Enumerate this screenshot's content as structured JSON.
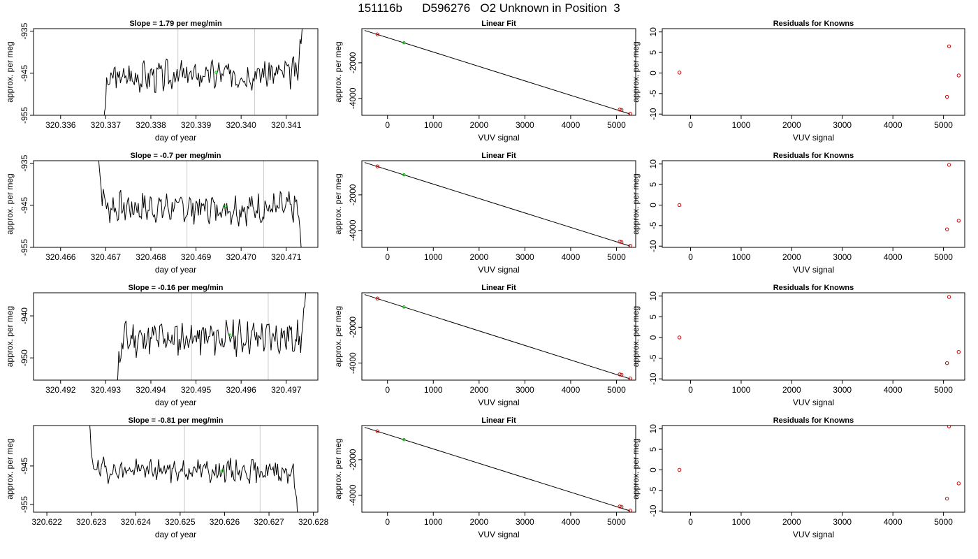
{
  "figure": {
    "title": "151116b      D596276   O2 Unknown in Position  3"
  },
  "chart_data": [
    {
      "type": "line",
      "panel": "timeseries",
      "title": "Slope =  1.79  per meg/min",
      "xlabel": "day of year",
      "ylabel": "approx. per meg",
      "xlim": [
        320.3354,
        320.3417
      ],
      "ylim": [
        -955,
        -934.4
      ],
      "xticks": [
        320.336,
        320.337,
        320.338,
        320.339,
        320.34,
        320.341
      ],
      "xtick_labels": [
        "320.336",
        "320.337",
        "320.338",
        "320.339",
        "320.340",
        "320.341"
      ],
      "yticks": [
        -955,
        -945,
        -935
      ],
      "ytick_labels": [
        "-955",
        "-945",
        "-935"
      ],
      "trace": {
        "start": 320.3369,
        "end": 320.3414,
        "base": -946,
        "slope": 1.2,
        "seed": 3,
        "noise": 1.8,
        "pre": "rise",
        "post": "spike"
      },
      "vlines": [
        320.3386,
        320.3403
      ],
      "marker": {
        "x": 320.33945,
        "y": -944.8,
        "color": "#00cc00"
      }
    },
    {
      "type": "scatter",
      "panel": "fit",
      "title": "Linear Fit",
      "xlabel": "VUV signal",
      "ylabel": "approx. per meg",
      "xlim": [
        -560,
        5420
      ],
      "ylim": [
        -4950,
        -80
      ],
      "xticks": [
        0,
        1000,
        2000,
        3000,
        4000,
        5000
      ],
      "xtick_labels": [
        "0",
        "1000",
        "2000",
        "3000",
        "4000",
        "5000"
      ],
      "yticks": [
        -4000,
        -2000
      ],
      "ytick_labels": [
        "-4000",
        "-2000"
      ],
      "line": [
        [
          -500,
          -180
        ],
        [
          5300,
          -4880
        ]
      ],
      "knowns": [
        {
          "x": -220,
          "y": -400
        },
        {
          "x": 5070,
          "y": -4630
        },
        {
          "x": 5110,
          "y": -4650
        },
        {
          "x": 5300,
          "y": -4860
        }
      ],
      "unknown": {
        "x": 360,
        "y": -870
      }
    },
    {
      "type": "scatter",
      "panel": "residuals",
      "title": "Residuals for Knowns",
      "xlabel": "VUV signal",
      "ylabel": "",
      "xlim": [
        -560,
        5420
      ],
      "ylim": [
        -10.3,
        10.8
      ],
      "xticks": [
        0,
        1000,
        2000,
        3000,
        4000,
        5000
      ],
      "xtick_labels": [
        "0",
        "1000",
        "2000",
        "3000",
        "4000",
        "5000"
      ],
      "yticks": [
        -10,
        -5,
        0,
        5,
        10
      ],
      "ytick_labels": [
        "-10",
        "-5",
        "0",
        "5",
        "10"
      ],
      "points": [
        {
          "x": -220,
          "y": 0.1
        },
        {
          "x": 5070,
          "y": -5.8
        },
        {
          "x": 5110,
          "y": 6.5
        },
        {
          "x": 5300,
          "y": -0.6
        }
      ]
    },
    {
      "type": "line",
      "panel": "timeseries",
      "title": "Slope =  -0.7  per meg/min",
      "xlabel": "day of year",
      "ylabel": "approx. per meg",
      "xlim": [
        320.4654,
        320.4717
      ],
      "ylim": [
        -955,
        -934.4
      ],
      "xticks": [
        320.466,
        320.467,
        320.468,
        320.469,
        320.47,
        320.471
      ],
      "xtick_labels": [
        "320.466",
        "320.467",
        "320.468",
        "320.469",
        "320.470",
        "320.471"
      ],
      "yticks": [
        -955,
        -945,
        -935
      ],
      "ytick_labels": [
        "-955",
        "-945",
        "-935"
      ],
      "trace": {
        "start": 320.4668,
        "end": 320.4714,
        "base": -945.5,
        "slope": -0.3,
        "seed": 7,
        "noise": 1.8,
        "pre": "fall",
        "post": "drop"
      },
      "vlines": [
        320.4688,
        320.4705
      ],
      "marker": {
        "x": 320.46965,
        "y": -945.2,
        "color": "#00cc00"
      }
    },
    {
      "type": "scatter",
      "panel": "fit",
      "title": "Linear Fit",
      "xlabel": "VUV signal",
      "ylabel": "approx. per meg",
      "xlim": [
        -560,
        5420
      ],
      "ylim": [
        -4950,
        -80
      ],
      "xticks": [
        0,
        1000,
        2000,
        3000,
        4000,
        5000
      ],
      "xtick_labels": [
        "0",
        "1000",
        "2000",
        "3000",
        "4000",
        "5000"
      ],
      "yticks": [
        -4000,
        -2000
      ],
      "ytick_labels": [
        "-4000",
        "-2000"
      ],
      "line": [
        [
          -500,
          -180
        ],
        [
          5300,
          -4880
        ]
      ],
      "knowns": [
        {
          "x": -220,
          "y": -400
        },
        {
          "x": 5070,
          "y": -4630
        },
        {
          "x": 5110,
          "y": -4650
        },
        {
          "x": 5300,
          "y": -4860
        }
      ],
      "unknown": {
        "x": 360,
        "y": -870
      }
    },
    {
      "type": "scatter",
      "panel": "residuals",
      "title": "Residuals for Knowns",
      "xlabel": "VUV signal",
      "ylabel": "",
      "xlim": [
        -560,
        5420
      ],
      "ylim": [
        -10.3,
        10.8
      ],
      "xticks": [
        0,
        1000,
        2000,
        3000,
        4000,
        5000
      ],
      "xtick_labels": [
        "0",
        "1000",
        "2000",
        "3000",
        "4000",
        "5000"
      ],
      "yticks": [
        -10,
        -5,
        0,
        5,
        10
      ],
      "ytick_labels": [
        "-10",
        "-5",
        "0",
        "5",
        "10"
      ],
      "points": [
        {
          "x": -220,
          "y": 0.0
        },
        {
          "x": 5070,
          "y": -5.9
        },
        {
          "x": 5110,
          "y": 9.8
        },
        {
          "x": 5300,
          "y": -3.8
        }
      ]
    },
    {
      "type": "line",
      "panel": "timeseries",
      "title": "Slope =  -0.16  per meg/min",
      "xlabel": "day of year",
      "ylabel": "approx. per meg",
      "xlim": [
        320.4914,
        320.4977
      ],
      "ylim": [
        -955.3,
        -934.5
      ],
      "xticks": [
        320.492,
        320.493,
        320.494,
        320.495,
        320.496,
        320.497
      ],
      "xtick_labels": [
        "320.492",
        "320.493",
        "320.494",
        "320.495",
        "320.496",
        "320.497"
      ],
      "yticks": [
        -950,
        -940
      ],
      "ytick_labels": [
        "-950",
        "-940"
      ],
      "trace": {
        "start": 320.4932,
        "end": 320.4975,
        "base": -945.5,
        "slope": 0.6,
        "seed": 11,
        "noise": 2.0,
        "pre": "rise",
        "post": "spike"
      },
      "vlines": [
        320.4949,
        320.4966
      ],
      "marker": {
        "x": 320.49575,
        "y": -944.6,
        "color": "#00cc00"
      }
    },
    {
      "type": "scatter",
      "panel": "fit",
      "title": "Linear Fit",
      "xlabel": "VUV signal",
      "ylabel": "approx. per meg",
      "xlim": [
        -560,
        5420
      ],
      "ylim": [
        -4950,
        -80
      ],
      "xticks": [
        0,
        1000,
        2000,
        3000,
        4000,
        5000
      ],
      "xtick_labels": [
        "0",
        "1000",
        "2000",
        "3000",
        "4000",
        "5000"
      ],
      "yticks": [
        -4000,
        -2000
      ],
      "ytick_labels": [
        "-4000",
        "-2000"
      ],
      "line": [
        [
          -500,
          -180
        ],
        [
          5300,
          -4880
        ]
      ],
      "knowns": [
        {
          "x": -220,
          "y": -400
        },
        {
          "x": 5070,
          "y": -4630
        },
        {
          "x": 5110,
          "y": -4650
        },
        {
          "x": 5300,
          "y": -4860
        }
      ],
      "unknown": {
        "x": 360,
        "y": -870
      }
    },
    {
      "type": "scatter",
      "panel": "residuals",
      "title": "Residuals for Knowns",
      "xlabel": "VUV signal",
      "ylabel": "",
      "xlim": [
        -560,
        5420
      ],
      "ylim": [
        -10.3,
        10.8
      ],
      "xticks": [
        0,
        1000,
        2000,
        3000,
        4000,
        5000
      ],
      "xtick_labels": [
        "0",
        "1000",
        "2000",
        "3000",
        "4000",
        "5000"
      ],
      "yticks": [
        -10,
        -5,
        0,
        5,
        10
      ],
      "ytick_labels": [
        "-10",
        "-5",
        "0",
        "5",
        "10"
      ],
      "points": [
        {
          "x": -220,
          "y": 0.0
        },
        {
          "x": 5070,
          "y": -6.2
        },
        {
          "x": 5110,
          "y": 9.8
        },
        {
          "x": 5300,
          "y": -3.5
        }
      ]
    },
    {
      "type": "line",
      "panel": "timeseries",
      "title": "Slope =  -0.81  per meg/min",
      "xlabel": "day of year",
      "ylabel": "approx. per meg",
      "xlim": [
        320.6217,
        320.6281
      ],
      "ylim": [
        -957,
        -934.5
      ],
      "xticks": [
        320.622,
        320.623,
        320.624,
        320.625,
        320.626,
        320.627,
        320.628
      ],
      "xtick_labels": [
        "320.622",
        "320.623",
        "320.624",
        "320.625",
        "320.626",
        "320.627",
        "320.628"
      ],
      "yticks": [
        -955,
        -945
      ],
      "ytick_labels": [
        "-955",
        "-945"
      ],
      "trace": {
        "start": 320.6229,
        "end": 320.6277,
        "base": -946,
        "slope": -0.3,
        "seed": 19,
        "noise": 1.5,
        "pre": "fall",
        "post": "drop"
      },
      "vlines": [
        320.6251,
        320.6268
      ],
      "marker": {
        "x": 320.62595,
        "y": -946.3,
        "color": "#00cc00"
      }
    },
    {
      "type": "scatter",
      "panel": "fit",
      "title": "Linear Fit",
      "xlabel": "VUV signal",
      "ylabel": "approx. per meg",
      "xlim": [
        -560,
        5420
      ],
      "ylim": [
        -4950,
        -80
      ],
      "xticks": [
        0,
        1000,
        2000,
        3000,
        4000,
        5000
      ],
      "xtick_labels": [
        "0",
        "1000",
        "2000",
        "3000",
        "4000",
        "5000"
      ],
      "yticks": [
        -4000,
        -2000
      ],
      "ytick_labels": [
        "-4000",
        "-2000"
      ],
      "line": [
        [
          -500,
          -180
        ],
        [
          5300,
          -4880
        ]
      ],
      "knowns": [
        {
          "x": -220,
          "y": -400
        },
        {
          "x": 5070,
          "y": -4630
        },
        {
          "x": 5110,
          "y": -4650
        },
        {
          "x": 5300,
          "y": -4860
        }
      ],
      "unknown": {
        "x": 360,
        "y": -870
      }
    },
    {
      "type": "scatter",
      "panel": "residuals",
      "title": "Residuals for Knowns",
      "xlabel": "VUV signal",
      "ylabel": "",
      "xlim": [
        -560,
        5420
      ],
      "ylim": [
        -10.3,
        10.8
      ],
      "xticks": [
        0,
        1000,
        2000,
        3000,
        4000,
        5000
      ],
      "xtick_labels": [
        "0",
        "1000",
        "2000",
        "3000",
        "4000",
        "5000"
      ],
      "yticks": [
        -10,
        -5,
        0,
        5,
        10
      ],
      "ytick_labels": [
        "-10",
        "-5",
        "0",
        "5",
        "10"
      ],
      "points": [
        {
          "x": -220,
          "y": 0.0
        },
        {
          "x": 5070,
          "y": -7.0
        },
        {
          "x": 5110,
          "y": 10.6
        },
        {
          "x": 5300,
          "y": -3.3
        }
      ]
    }
  ],
  "colors": {
    "series": "#000000",
    "known": "#cc0000",
    "unknown": "#00cc00",
    "vline": "#cccccc",
    "axis": "#000000",
    "fit_line": "#000000"
  }
}
